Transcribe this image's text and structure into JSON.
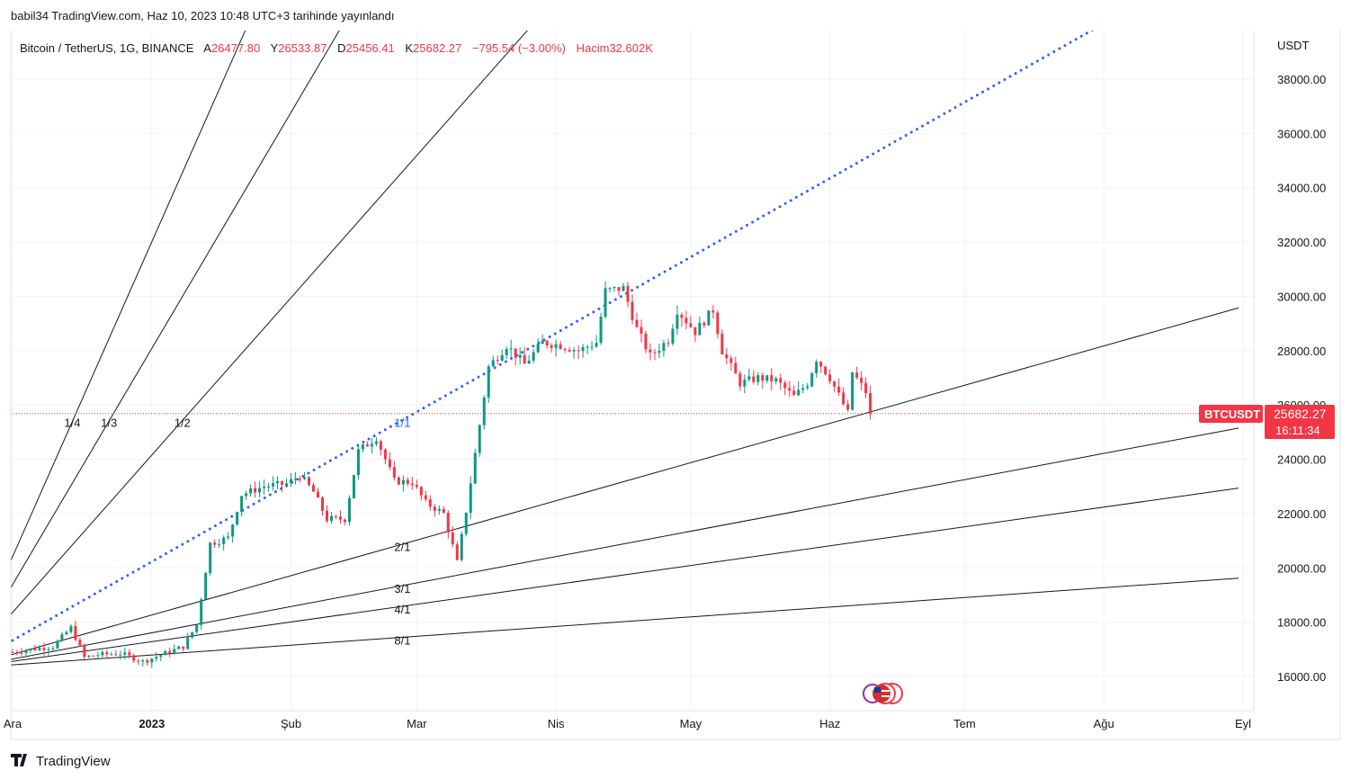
{
  "header": {
    "published": "babil34 TradingView.com, Haz 10, 2023 10:48 UTC+3 tarihinde yayınlandı",
    "symbol": "Bitcoin / TetherUS, 1G, BINANCE",
    "o_label": "A",
    "o_value": "26477.80",
    "h_label": "Y",
    "h_value": "26533.87",
    "l_label": "D",
    "l_value": "25456.41",
    "c_label": "K",
    "c_value": "25682.27",
    "change": "−795.54 (−3.00%)",
    "vol_label": "Hacim",
    "vol_value": "32.602K"
  },
  "footer": {
    "logo_text": "TradingView"
  },
  "price_axis": {
    "currency": "USDT"
  },
  "price_tag": {
    "symbol": "BTCUSDT",
    "price": "25682.27",
    "countdown": "16:11:34"
  },
  "colors": {
    "up": "#089981",
    "down": "#f23645",
    "gann_main": "#2962ff",
    "line": "#131722"
  },
  "chart_data": {
    "type": "candlestick",
    "title": "Bitcoin / TetherUS, 1G, BINANCE",
    "y_ticks": [
      16000,
      18000,
      20000,
      22000,
      24000,
      26000,
      28000,
      30000,
      32000,
      34000,
      36000,
      38000
    ],
    "y_tick_labels": [
      "16000.00",
      "18000.00",
      "20000.00",
      "22000.00",
      "24000.00",
      "26000.00",
      "28000.00",
      "30000.00",
      "32000.00",
      "34000.00",
      "36000.00",
      "38000.00"
    ],
    "ylim": [
      15000,
      39500
    ],
    "x_range": [
      "2022-12-01",
      "2023-09-01"
    ],
    "x_ticks": [
      {
        "date": "2022-12-01",
        "label": "Ara"
      },
      {
        "date": "2023-01-01",
        "label": "2023"
      },
      {
        "date": "2023-02-01",
        "label": "Şub"
      },
      {
        "date": "2023-03-01",
        "label": "Mar"
      },
      {
        "date": "2023-04-01",
        "label": "Nis"
      },
      {
        "date": "2023-05-01",
        "label": "May"
      },
      {
        "date": "2023-06-01",
        "label": "Haz"
      },
      {
        "date": "2023-07-01",
        "label": "Tem"
      },
      {
        "date": "2023-08-01",
        "label": "Ağu"
      },
      {
        "date": "2023-09-01",
        "label": "Eyl"
      }
    ],
    "last_price": 25682.27,
    "close_path": [
      [
        "2022-12-01",
        16900
      ],
      [
        "2022-12-05",
        17000
      ],
      [
        "2022-12-10",
        17100
      ],
      [
        "2022-12-14",
        17800
      ],
      [
        "2022-12-17",
        16700
      ],
      [
        "2022-12-20",
        16800
      ],
      [
        "2022-12-25",
        16850
      ],
      [
        "2022-12-30",
        16550
      ],
      [
        "2023-01-04",
        16850
      ],
      [
        "2023-01-08",
        17100
      ],
      [
        "2023-01-11",
        17900
      ],
      [
        "2023-01-14",
        20900
      ],
      [
        "2023-01-18",
        21100
      ],
      [
        "2023-01-21",
        22700
      ],
      [
        "2023-01-26",
        23000
      ],
      [
        "2023-01-31",
        23100
      ],
      [
        "2023-02-03",
        23400
      ],
      [
        "2023-02-06",
        22800
      ],
      [
        "2023-02-09",
        21800
      ],
      [
        "2023-02-13",
        21800
      ],
      [
        "2023-02-16",
        24300
      ],
      [
        "2023-02-20",
        24800
      ],
      [
        "2023-02-24",
        23200
      ],
      [
        "2023-02-28",
        23150
      ],
      [
        "2023-03-03",
        22400
      ],
      [
        "2023-03-07",
        22000
      ],
      [
        "2023-03-10",
        20200
      ],
      [
        "2023-03-12",
        22100
      ],
      [
        "2023-03-14",
        24200
      ],
      [
        "2023-03-17",
        27400
      ],
      [
        "2023-03-21",
        28200
      ],
      [
        "2023-03-25",
        27500
      ],
      [
        "2023-03-29",
        28300
      ],
      [
        "2023-04-02",
        28200
      ],
      [
        "2023-04-06",
        28000
      ],
      [
        "2023-04-10",
        28300
      ],
      [
        "2023-04-12",
        30200
      ],
      [
        "2023-04-16",
        30300
      ],
      [
        "2023-04-19",
        28800
      ],
      [
        "2023-04-22",
        27800
      ],
      [
        "2023-04-26",
        28400
      ],
      [
        "2023-04-28",
        29500
      ],
      [
        "2023-05-02",
        28700
      ],
      [
        "2023-05-06",
        29500
      ],
      [
        "2023-05-08",
        28000
      ],
      [
        "2023-05-12",
        26800
      ],
      [
        "2023-05-16",
        27000
      ],
      [
        "2023-05-20",
        26900
      ],
      [
        "2023-05-24",
        26300
      ],
      [
        "2023-05-27",
        26800
      ],
      [
        "2023-05-29",
        27700
      ],
      [
        "2023-06-01",
        27000
      ],
      [
        "2023-06-05",
        25700
      ],
      [
        "2023-06-06",
        27200
      ],
      [
        "2023-06-09",
        26480
      ],
      [
        "2023-06-10",
        25682
      ]
    ],
    "gann_fan": {
      "origin": {
        "date": "2022-11-20",
        "price": 16300
      },
      "unit_slope_usdt_per_day": 93.5,
      "lines": [
        {
          "label": "1/4",
          "ratio": 4
        },
        {
          "label": "1/3",
          "ratio": 3
        },
        {
          "label": "1/2",
          "ratio": 2
        },
        {
          "label": "1/1",
          "ratio": 1,
          "style": "dotted-blue"
        },
        {
          "label": "2/1",
          "ratio": 0.5
        },
        {
          "label": "3/1",
          "ratio": 0.3333
        },
        {
          "label": "4/1",
          "ratio": 0.25
        },
        {
          "label": "8/1",
          "ratio": 0.125
        }
      ]
    }
  }
}
